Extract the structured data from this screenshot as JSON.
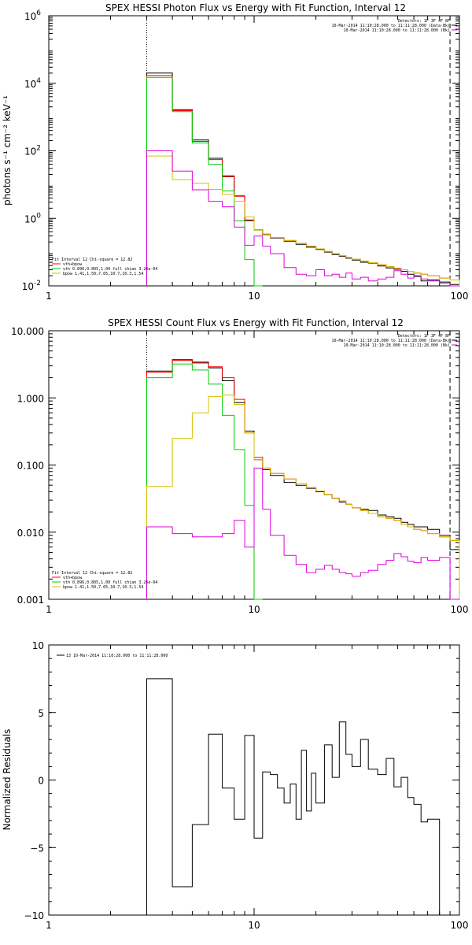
{
  "colors": {
    "data": "#000000",
    "fit_total": "#ff0000",
    "vth": "#00cc00",
    "bpow": "#d4c000",
    "background": "#dd00dd"
  },
  "chart_data": [
    {
      "type": "line",
      "step": true,
      "title": "SPEX HESSI Photon Flux vs Energy with Fit Function, Interval 12",
      "ylabel": "photons s⁻¹ cm⁻² keV⁻¹",
      "xscale": "log",
      "yscale": "log",
      "xlim": [
        1,
        100
      ],
      "ylim": [
        0.01,
        1000000
      ],
      "xticks": [
        "1",
        "10",
        "100"
      ],
      "yticks": [
        {
          "value": 1000000,
          "base": "10",
          "exp": "6"
        },
        {
          "value": 10000,
          "base": "10",
          "exp": "4"
        },
        {
          "value": 100,
          "base": "10",
          "exp": "2"
        },
        {
          "value": 1,
          "base": "10",
          "exp": "0"
        },
        {
          "value": 0.01,
          "base": "10",
          "exp": "-2"
        }
      ],
      "vlines": [
        {
          "x": 3,
          "style": "dotted"
        },
        {
          "x": 90,
          "style": "dashed"
        }
      ],
      "legend_top": [
        "Detectors: 1F 3F 4F 8F",
        "10-Mar-2014 11:10:28.000 to 11:11:28.000 (Data-Bk)",
        "10-Mar-2014 11:10:28.000 to 11:11:28.000 (Bk)"
      ],
      "legend_top_colors": [
        "",
        "#000000",
        "#dd00dd"
      ],
      "legend_bottom": [
        "Fit Interval 12   Chi-square = 12.82",
        "vth+bpow",
        "vth 0.896,0.805,1.00  full chian 3.26e-04",
        "bpow 1.41,1.50,7.65,10.7,10.3,1.54"
      ],
      "legend_bottom_colors": [
        "",
        "#ff0000",
        "#00cc00",
        "#d4c000"
      ],
      "edges": [
        3,
        4,
        5,
        6,
        7,
        8,
        9,
        10,
        11,
        12,
        14,
        16,
        18,
        20,
        22,
        24,
        26,
        28,
        30,
        33,
        36,
        40,
        44,
        48,
        52,
        56,
        60,
        65,
        70,
        80,
        90,
        100
      ],
      "series": [
        {
          "name": "data",
          "color": "#000000",
          "values": [
            20000,
            1650,
            210,
            60,
            18,
            4.6,
            0.85,
            0.45,
            0.33,
            0.26,
            0.21,
            0.17,
            0.14,
            0.12,
            0.1,
            0.085,
            0.075,
            0.066,
            0.058,
            0.05,
            0.047,
            0.039,
            0.034,
            0.031,
            0.027,
            0.022,
            0.019,
            0.014,
            0.015,
            0.013,
            0.011
          ]
        },
        {
          "name": "vth+bpow",
          "color": "#ff0000",
          "values": [
            17000,
            1550,
            190,
            55,
            17,
            4.5,
            0.9,
            0.46,
            0.34,
            0.27,
            0.22,
            0.18,
            0.15,
            0.125,
            0.105,
            0.09,
            0.078,
            0.069,
            0.061,
            0.054,
            0.048,
            0.042,
            0.037,
            0.033,
            0.03,
            0.027,
            0.024,
            0.022,
            0.02,
            0.017,
            0.015
          ]
        },
        {
          "name": "vth",
          "color": "#00cc00",
          "values": [
            15000,
            1450,
            170,
            40,
            6.5,
            0.85,
            0.06,
            0.003
          ]
        },
        {
          "name": "bpow",
          "color": "#d4c000",
          "values": [
            70,
            14,
            11,
            7.2,
            5.1,
            3.2,
            1.1,
            0.45,
            0.34,
            0.27,
            0.22,
            0.18,
            0.15,
            0.125,
            0.105,
            0.09,
            0.078,
            0.069,
            0.061,
            0.054,
            0.048,
            0.042,
            0.037,
            0.033,
            0.03,
            0.027,
            0.024,
            0.022,
            0.02,
            0.017,
            0.015
          ]
        },
        {
          "name": "background",
          "color": "#dd00dd",
          "values": [
            100,
            25,
            7,
            3.2,
            2.2,
            0.55,
            0.16,
            0.3,
            0.15,
            0.09,
            0.035,
            0.022,
            0.02,
            0.03,
            0.02,
            0.022,
            0.018,
            0.024,
            0.016,
            0.018,
            0.014,
            0.016,
            0.018,
            0.028,
            0.022,
            0.017,
            0.02,
            0.016,
            0.014,
            0.012,
            0.001
          ]
        }
      ]
    },
    {
      "type": "line",
      "step": true,
      "title": "SPEX HESSI Count Flux vs Energy with Fit Function, Interval 12",
      "ylabel": "",
      "xscale": "log",
      "yscale": "log",
      "xlim": [
        1,
        100
      ],
      "ylim": [
        0.001,
        10
      ],
      "xticks": [
        "1",
        "10",
        "100"
      ],
      "yticks": [
        {
          "value": 10,
          "label": "10.000"
        },
        {
          "value": 1,
          "label": "1.000"
        },
        {
          "value": 0.1,
          "label": "0.100"
        },
        {
          "value": 0.01,
          "label": "0.010"
        },
        {
          "value": 0.001,
          "label": "0.001"
        }
      ],
      "vlines": [
        {
          "x": 3,
          "style": "dotted"
        },
        {
          "x": 90,
          "style": "dashed"
        }
      ],
      "legend_top": [
        "Detectors: 1F 3F 4F 8F",
        "10-Mar-2014 11:10:28.000 to 11:11:28.000 (Data-Bk)",
        "10-Mar-2014 11:10:28.000 to 11:11:28.000 (Bk)"
      ],
      "legend_top_colors": [
        "",
        "#000000",
        "#dd00dd"
      ],
      "legend_bottom": [
        "Fit Interval 12   Chi-square = 12.82",
        "vth+bpow",
        "vth 0.896,0.805,1.00  full chian 3.26e-04",
        "bpow 1.41,1.50,7.65,10.7,10.3,1.54"
      ],
      "legend_bottom_colors": [
        "",
        "#ff0000",
        "#00cc00",
        "#d4c000"
      ],
      "edges": [
        3,
        4,
        5,
        6,
        7,
        8,
        9,
        10,
        11,
        12,
        14,
        16,
        18,
        20,
        22,
        24,
        26,
        28,
        30,
        33,
        36,
        40,
        44,
        48,
        52,
        56,
        60,
        65,
        70,
        80,
        90,
        100
      ],
      "series": [
        {
          "name": "data",
          "color": "#000000",
          "values": [
            2.5,
            3.7,
            3.4,
            2.8,
            1.8,
            0.85,
            0.32,
            0.12,
            0.085,
            0.07,
            0.055,
            0.05,
            0.045,
            0.04,
            0.036,
            0.032,
            0.028,
            0.026,
            0.023,
            0.022,
            0.021,
            0.018,
            0.017,
            0.016,
            0.014,
            0.013,
            0.012,
            0.012,
            0.011,
            0.009,
            0.0055
          ]
        },
        {
          "name": "vth+bpow",
          "color": "#ff0000",
          "values": [
            2.4,
            3.6,
            3.3,
            2.9,
            2.0,
            0.95,
            0.3,
            0.13,
            0.09,
            0.075,
            0.062,
            0.053,
            0.046,
            0.041,
            0.036,
            0.032,
            0.029,
            0.026,
            0.023,
            0.021,
            0.019,
            0.017,
            0.016,
            0.015,
            0.013,
            0.012,
            0.011,
            0.0105,
            0.0095,
            0.0085,
            0.0075
          ]
        },
        {
          "name": "vth",
          "color": "#00cc00",
          "values": [
            2.0,
            3.2,
            2.6,
            1.6,
            0.55,
            0.17,
            0.025,
            0.001
          ]
        },
        {
          "name": "bpow",
          "color": "#d4c000",
          "values": [
            0.048,
            0.25,
            0.6,
            1.05,
            1.1,
            0.8,
            0.3,
            0.12,
            0.09,
            0.075,
            0.062,
            0.053,
            0.046,
            0.041,
            0.036,
            0.032,
            0.029,
            0.026,
            0.023,
            0.021,
            0.019,
            0.017,
            0.016,
            0.015,
            0.013,
            0.012,
            0.011,
            0.0105,
            0.0095,
            0.0085,
            0.0075
          ]
        },
        {
          "name": "background",
          "color": "#dd00dd",
          "values": [
            0.012,
            0.0095,
            0.0085,
            0.0085,
            0.0095,
            0.015,
            0.006,
            0.09,
            0.022,
            0.009,
            0.0045,
            0.0033,
            0.0025,
            0.0028,
            0.0032,
            0.0028,
            0.0025,
            0.0024,
            0.0022,
            0.0025,
            0.0027,
            0.0033,
            0.0038,
            0.0048,
            0.0043,
            0.0037,
            0.0035,
            0.0042,
            0.0038,
            0.0042,
            0.0005
          ]
        }
      ]
    },
    {
      "type": "line",
      "step": true,
      "title": "",
      "ylabel": "Normalized Residuals",
      "xscale": "log",
      "yscale": "linear",
      "xlim": [
        1,
        100
      ],
      "ylim": [
        -10,
        10
      ],
      "xticks": [
        "1",
        "10",
        "100"
      ],
      "yticks": [
        {
          "value": 10,
          "label": "10"
        },
        {
          "value": 5,
          "label": "5"
        },
        {
          "value": 0,
          "label": "0"
        },
        {
          "value": -5,
          "label": "−5"
        },
        {
          "value": -10,
          "label": "−10"
        }
      ],
      "legend_top_left": "13  10-Mar-2014 11:10:28.000 to 11:11:28.000",
      "edges": [
        3,
        4,
        5,
        6,
        7,
        8,
        9,
        10,
        11,
        12,
        13,
        14,
        15,
        16,
        17,
        18,
        19,
        20,
        22,
        24,
        26,
        28,
        30,
        33,
        36,
        40,
        44,
        48,
        52,
        56,
        60,
        65,
        70,
        80,
        90
      ],
      "series": [
        {
          "name": "residuals",
          "color": "#000000",
          "values": [
            7.5,
            -7.9,
            -3.3,
            3.4,
            -0.6,
            -2.9,
            3.3,
            -4.3,
            0.6,
            0.4,
            -0.6,
            -1.7,
            -0.3,
            -2.9,
            2.2,
            -2.3,
            0.5,
            -1.7,
            2.6,
            0.2,
            4.3,
            1.9,
            1.0,
            3.0,
            0.8,
            0.4,
            1.6,
            -0.5,
            0.2,
            -1.3,
            -1.8,
            -3.1,
            -2.9,
            -10
          ]
        }
      ]
    }
  ]
}
